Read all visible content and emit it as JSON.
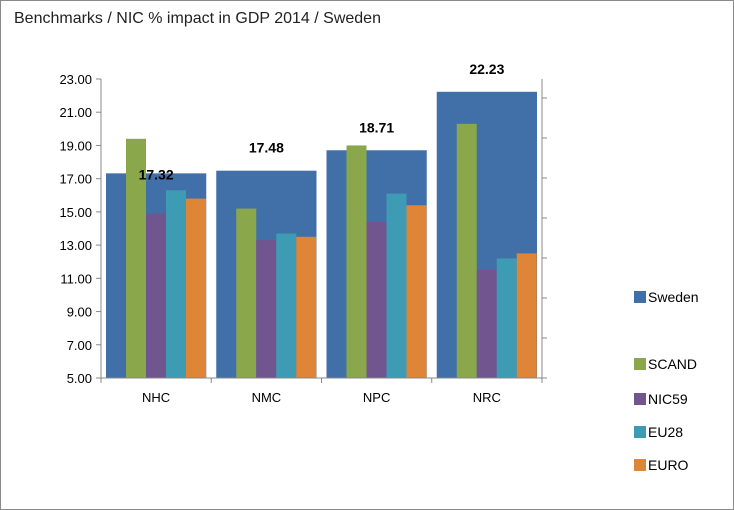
{
  "chart_data": {
    "type": "bar",
    "title": "Benchmarks / NIC % impact in GDP 2014 / Sweden",
    "categories": [
      "NHC",
      "NMC",
      "NPC",
      "NRC"
    ],
    "ylim": [
      5,
      23
    ],
    "yticks": [
      "5.00",
      "7.00",
      "9.00",
      "11.00",
      "13.00",
      "15.00",
      "17.00",
      "19.00",
      "21.00",
      "23.00"
    ],
    "grid": false,
    "legend": "right",
    "secondary_axis": "right, unlabeled ticks",
    "series": [
      {
        "name": "Sweden",
        "color": "#4170a8",
        "values": [
          17.32,
          17.48,
          18.71,
          22.23
        ],
        "labels": [
          "17.32",
          "17.48",
          "18.71",
          "22.23"
        ]
      },
      {
        "name": "SCAND",
        "color": "#8aa84b",
        "values": [
          19.4,
          15.2,
          19.0,
          20.3
        ]
      },
      {
        "name": "NIC59",
        "color": "#71558f",
        "values": [
          14.9,
          13.3,
          14.4,
          11.5
        ]
      },
      {
        "name": "EU28",
        "color": "#3d9bb4",
        "values": [
          16.3,
          13.7,
          16.1,
          12.2
        ]
      },
      {
        "name": "EURO",
        "color": "#df8537",
        "values": [
          15.8,
          13.5,
          15.4,
          12.5
        ]
      }
    ]
  }
}
